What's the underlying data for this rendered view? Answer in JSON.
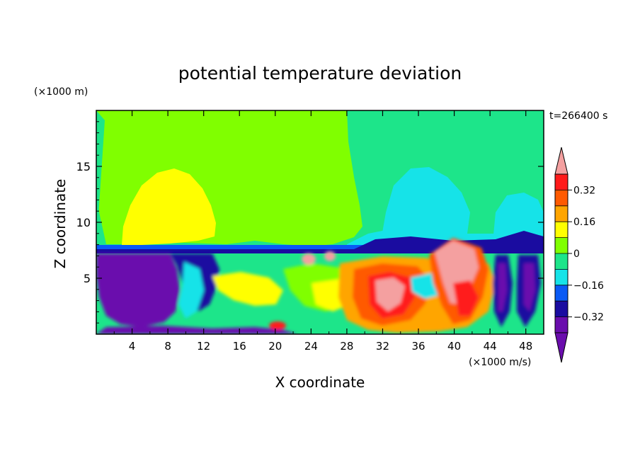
{
  "chart_data": {
    "type": "heatmap",
    "title": "potential temperature deviation",
    "xlabel": "X coordinate",
    "ylabel": "Z coordinate",
    "x_unit": "(×1000 m/s)",
    "y_unit": "(×1000 m)",
    "time_label": "t=266400 s",
    "xlim": [
      0,
      50
    ],
    "ylim": [
      0,
      20
    ],
    "x_ticks": [
      4,
      8,
      12,
      16,
      20,
      24,
      28,
      32,
      36,
      40,
      44,
      48
    ],
    "y_ticks": [
      5,
      10,
      15
    ],
    "colorbar": {
      "levels": [
        -0.4,
        -0.32,
        -0.24,
        -0.16,
        -0.08,
        0,
        0.08,
        0.16,
        0.24,
        0.32,
        0.4
      ],
      "tick_labels": [
        "0.32",
        "0.16",
        "0",
        "−0.16",
        "−0.32"
      ],
      "tick_values": [
        0.32,
        0.16,
        0,
        -0.16,
        -0.32
      ],
      "colors": [
        "#6a0dad",
        "#1a0ca0",
        "#0a5af5",
        "#16e3e8",
        "#1de58a",
        "#80ff00",
        "#ffff00",
        "#ffa500",
        "#ff5a00",
        "#ff1a1a"
      ],
      "over_color": "#f4a0a0",
      "under_color": "#6a0dad"
    }
  }
}
